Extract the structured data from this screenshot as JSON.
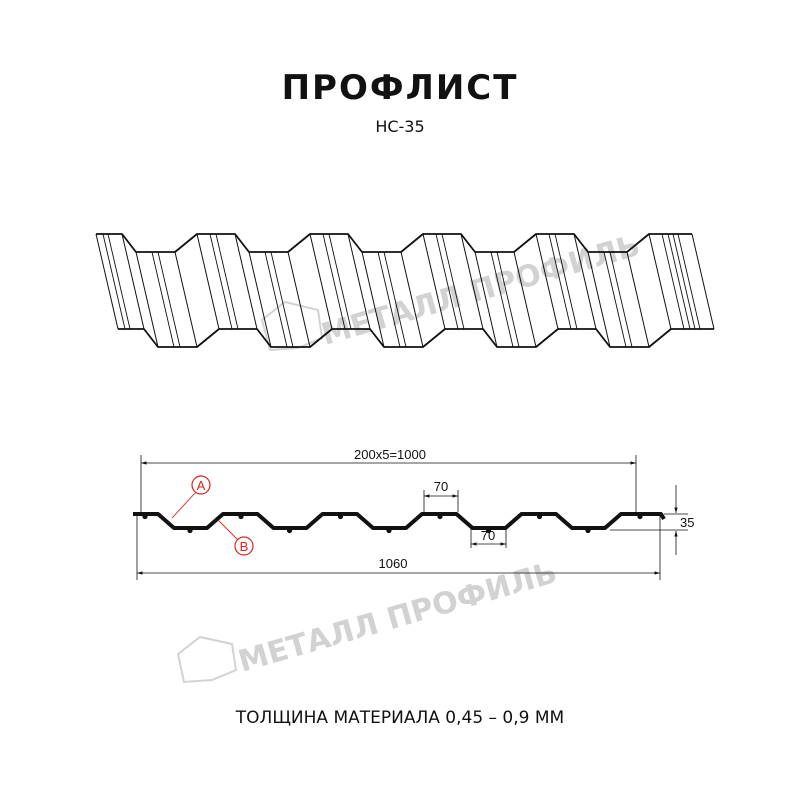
{
  "header": {
    "title": "ПРОФЛИСТ",
    "subtitle": "НС-35"
  },
  "watermark": {
    "text": "МЕТАЛЛ ПРОФИЛЬ"
  },
  "drawing": {
    "dimensions": {
      "pitch_total": "200x5=1000",
      "overall_width": "1060",
      "top_shelf": "70",
      "bottom_shelf": "70",
      "height": "35"
    },
    "markers": {
      "a": "A",
      "b": "B"
    },
    "marker_color": "#e02020",
    "profile_color": "#111111"
  },
  "footer": {
    "thickness": "ТОЛЩИНА МАТЕРИАЛА 0,45 – 0,9 ММ"
  }
}
